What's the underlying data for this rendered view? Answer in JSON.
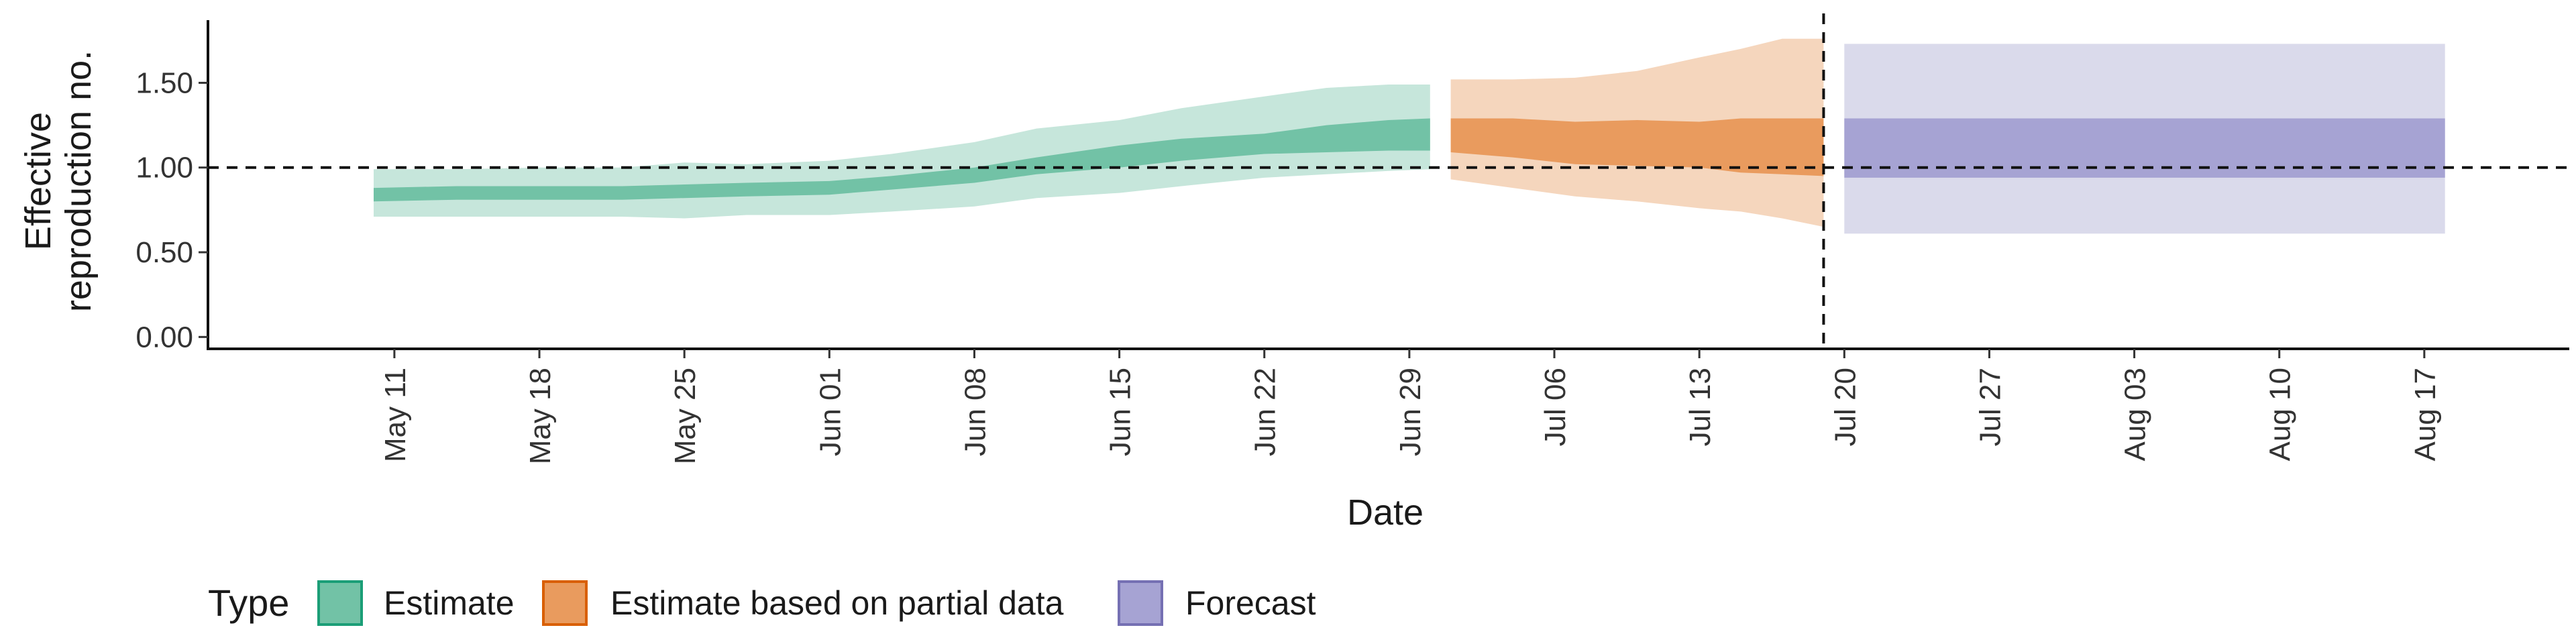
{
  "chart_data": {
    "type": "area",
    "xlabel": "Date",
    "ylabel_lines": [
      "Effective",
      "reproduction no."
    ],
    "y_ticks": [
      "0.00",
      "0.50",
      "1.00",
      "1.50"
    ],
    "y_range": [
      -0.07,
      1.87
    ],
    "x_range": [
      "2021-05-02",
      "2021-08-24"
    ],
    "x_ticks": [
      {
        "date": "2021-05-11",
        "label": "May 11"
      },
      {
        "date": "2021-05-18",
        "label": "May 18"
      },
      {
        "date": "2021-05-25",
        "label": "May 25"
      },
      {
        "date": "2021-06-01",
        "label": "Jun 01"
      },
      {
        "date": "2021-06-08",
        "label": "Jun 08"
      },
      {
        "date": "2021-06-15",
        "label": "Jun 15"
      },
      {
        "date": "2021-06-22",
        "label": "Jun 22"
      },
      {
        "date": "2021-06-29",
        "label": "Jun 29"
      },
      {
        "date": "2021-07-06",
        "label": "Jul 06"
      },
      {
        "date": "2021-07-13",
        "label": "Jul 13"
      },
      {
        "date": "2021-07-20",
        "label": "Jul 20"
      },
      {
        "date": "2021-07-27",
        "label": "Jul 27"
      },
      {
        "date": "2021-08-03",
        "label": "Aug 03"
      },
      {
        "date": "2021-08-10",
        "label": "Aug 10"
      },
      {
        "date": "2021-08-17",
        "label": "Aug 17"
      }
    ],
    "reference_line_y": 1.0,
    "vertical_line_date": "2021-07-19",
    "grid": false,
    "legend": {
      "title": "Type",
      "placement": "bottom-left",
      "entries": [
        {
          "label": "Estimate",
          "fill": "#72c2a6",
          "stroke": "#1b9e77"
        },
        {
          "label": "Estimate based on partial data",
          "fill": "#e99b5e",
          "stroke": "#d95f02"
        },
        {
          "label": "Forecast",
          "fill": "#a6a3d3",
          "stroke": "#7570b3"
        }
      ]
    },
    "series": [
      {
        "name": "Estimate",
        "inner_color": "#72c2a6",
        "outer_color": "#c6e6db",
        "points": [
          {
            "x": "2021-05-10",
            "lo90": 0.71,
            "lo50": 0.8,
            "hi50": 0.88,
            "hi90": 0.99
          },
          {
            "x": "2021-05-14",
            "lo90": 0.71,
            "lo50": 0.81,
            "hi50": 0.89,
            "hi90": 0.99
          },
          {
            "x": "2021-05-18",
            "lo90": 0.71,
            "lo50": 0.81,
            "hi50": 0.89,
            "hi90": 1.0
          },
          {
            "x": "2021-05-22",
            "lo90": 0.71,
            "lo50": 0.81,
            "hi50": 0.89,
            "hi90": 1.0
          },
          {
            "x": "2021-05-25",
            "lo90": 0.7,
            "lo50": 0.82,
            "hi50": 0.9,
            "hi90": 1.03
          },
          {
            "x": "2021-05-28",
            "lo90": 0.72,
            "lo50": 0.83,
            "hi50": 0.91,
            "hi90": 1.02
          },
          {
            "x": "2021-06-01",
            "lo90": 0.72,
            "lo50": 0.84,
            "hi50": 0.92,
            "hi90": 1.04
          },
          {
            "x": "2021-06-04",
            "lo90": 0.74,
            "lo50": 0.87,
            "hi50": 0.95,
            "hi90": 1.08
          },
          {
            "x": "2021-06-08",
            "lo90": 0.77,
            "lo50": 0.91,
            "hi50": 1.0,
            "hi90": 1.15
          },
          {
            "x": "2021-06-11",
            "lo90": 0.82,
            "lo50": 0.96,
            "hi50": 1.06,
            "hi90": 1.23
          },
          {
            "x": "2021-06-15",
            "lo90": 0.85,
            "lo50": 1.0,
            "hi50": 1.13,
            "hi90": 1.28
          },
          {
            "x": "2021-06-18",
            "lo90": 0.89,
            "lo50": 1.04,
            "hi50": 1.17,
            "hi90": 1.35
          },
          {
            "x": "2021-06-22",
            "lo90": 0.94,
            "lo50": 1.08,
            "hi50": 1.2,
            "hi90": 1.42
          },
          {
            "x": "2021-06-25",
            "lo90": 0.96,
            "lo50": 1.09,
            "hi50": 1.25,
            "hi90": 1.47
          },
          {
            "x": "2021-06-28",
            "lo90": 0.98,
            "lo50": 1.1,
            "hi50": 1.28,
            "hi90": 1.49
          },
          {
            "x": "2021-06-30",
            "lo90": 0.99,
            "lo50": 1.1,
            "hi50": 1.29,
            "hi90": 1.49
          }
        ]
      },
      {
        "name": "Estimate based on partial data",
        "inner_color": "#e99b5e",
        "outer_color": "#f5d6bd",
        "points": [
          {
            "x": "2021-07-01",
            "lo90": 0.93,
            "lo50": 1.09,
            "hi50": 1.29,
            "hi90": 1.52
          },
          {
            "x": "2021-07-04",
            "lo90": 0.88,
            "lo50": 1.06,
            "hi50": 1.29,
            "hi90": 1.52
          },
          {
            "x": "2021-07-07",
            "lo90": 0.83,
            "lo50": 1.02,
            "hi50": 1.27,
            "hi90": 1.53
          },
          {
            "x": "2021-07-10",
            "lo90": 0.8,
            "lo50": 1.01,
            "hi50": 1.28,
            "hi90": 1.57
          },
          {
            "x": "2021-07-13",
            "lo90": 0.76,
            "lo50": 1.0,
            "hi50": 1.27,
            "hi90": 1.65
          },
          {
            "x": "2021-07-15",
            "lo90": 0.74,
            "lo50": 0.97,
            "hi50": 1.29,
            "hi90": 1.7
          },
          {
            "x": "2021-07-17",
            "lo90": 0.7,
            "lo50": 0.96,
            "hi50": 1.29,
            "hi90": 1.76
          },
          {
            "x": "2021-07-19",
            "lo90": 0.65,
            "lo50": 0.95,
            "hi50": 1.29,
            "hi90": 1.76
          }
        ]
      },
      {
        "name": "Forecast",
        "inner_color": "#a6a3d3",
        "outer_color": "#dadaeb",
        "points": [
          {
            "x": "2021-07-20",
            "lo90": 0.61,
            "lo50": 0.94,
            "hi50": 1.29,
            "hi90": 1.73
          },
          {
            "x": "2021-08-18",
            "lo90": 0.61,
            "lo50": 0.94,
            "hi50": 1.29,
            "hi90": 1.73
          }
        ]
      }
    ]
  }
}
